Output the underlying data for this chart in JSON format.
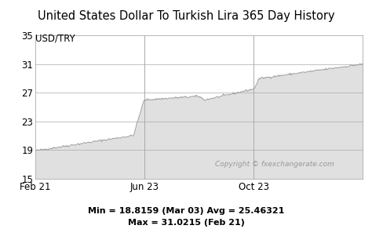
{
  "title": "United States Dollar To Turkish Lira 365 Day History",
  "ylabel": "USD/TRY",
  "ylim": [
    15,
    35
  ],
  "yticks": [
    15,
    19,
    23,
    27,
    31,
    35
  ],
  "xtick_labels": [
    "Feb 21",
    "Jun 23",
    "Oct 23"
  ],
  "vline_positions": [
    0.333,
    0.667
  ],
  "line_color": "#999999",
  "fill_color": "#e0e0e0",
  "background_color": "#ffffff",
  "copyright_text": "Copyright © fxexchangerate.com",
  "stats_line1": "Min = 18.8159 (Mar 03) Avg = 25.46321",
  "stats_line2": "Max = 31.0215 (Feb 21)",
  "title_fontsize": 10.5,
  "label_fontsize": 8.5,
  "stats_fontsize": 8.0,
  "copyright_fontsize": 6.5
}
